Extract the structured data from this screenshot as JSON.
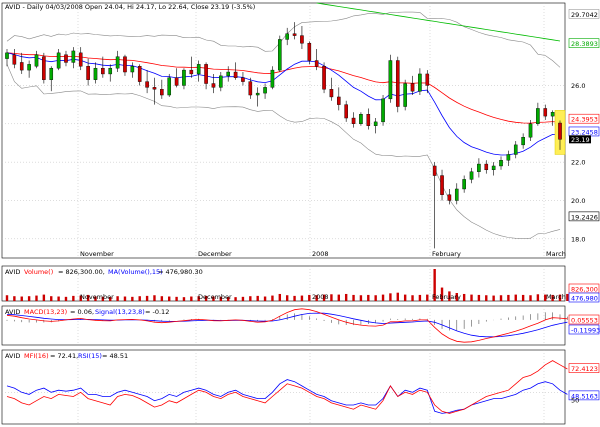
{
  "chart_data": [
    {
      "panel": "price",
      "type": "candlestick",
      "header": {
        "symbol": "AVID",
        "text": "AVID - Daily 04/03/2008 Open 24.04, Hi 24.17, Lo 22.64, Close 23.19 (-3.5%)"
      },
      "y_ticks": [
        "29.7042",
        "28.3893",
        "26.0",
        "24.3953",
        "22.0",
        "20.0",
        "18.0"
      ],
      "y_labels_boxed": [
        {
          "text": "24.3953",
          "color": "#ff0000"
        },
        {
          "text": "23.2458",
          "color": "#0000ff"
        },
        {
          "text": "23.19",
          "color": "#000000"
        },
        {
          "text": "19.2426",
          "color": "#000000"
        },
        {
          "text": "28.3893",
          "color": "#00aa00"
        }
      ],
      "ylim": [
        17.0,
        30.3
      ],
      "x_labels": [
        "November",
        "December",
        "2008",
        "February",
        "March"
      ],
      "grid": true,
      "series_colors": {
        "up": "#00aa00",
        "down": "#cc0000",
        "ma_short": "#0000ff",
        "ma_mid": "#ff0000",
        "ma_long": "#00bb00",
        "bands": "#888888",
        "highlight": "#ffee55"
      },
      "candles": [
        {
          "o": 27.4,
          "h": 27.9,
          "l": 27.0,
          "c": 27.7
        },
        {
          "o": 27.6,
          "h": 27.9,
          "l": 26.9,
          "c": 27.1
        },
        {
          "o": 27.2,
          "h": 27.7,
          "l": 26.6,
          "c": 26.8
        },
        {
          "o": 26.8,
          "h": 27.3,
          "l": 26.4,
          "c": 27.1
        },
        {
          "o": 27.0,
          "h": 27.8,
          "l": 26.9,
          "c": 27.6
        },
        {
          "o": 27.5,
          "h": 27.7,
          "l": 26.1,
          "c": 26.3
        },
        {
          "o": 26.3,
          "h": 27.0,
          "l": 25.7,
          "c": 26.9
        },
        {
          "o": 26.9,
          "h": 27.9,
          "l": 26.8,
          "c": 27.7
        },
        {
          "o": 27.6,
          "h": 27.8,
          "l": 27.0,
          "c": 27.2
        },
        {
          "o": 27.2,
          "h": 28.0,
          "l": 26.9,
          "c": 27.8
        },
        {
          "o": 27.7,
          "h": 28.0,
          "l": 26.8,
          "c": 27.0
        },
        {
          "o": 27.0,
          "h": 27.4,
          "l": 26.0,
          "c": 26.3
        },
        {
          "o": 26.3,
          "h": 27.2,
          "l": 26.1,
          "c": 26.9
        },
        {
          "o": 26.9,
          "h": 27.5,
          "l": 26.4,
          "c": 26.6
        },
        {
          "o": 26.6,
          "h": 27.1,
          "l": 26.2,
          "c": 26.9
        },
        {
          "o": 26.9,
          "h": 27.8,
          "l": 26.7,
          "c": 27.5
        },
        {
          "o": 27.5,
          "h": 27.6,
          "l": 26.5,
          "c": 26.7
        },
        {
          "o": 26.7,
          "h": 27.2,
          "l": 26.4,
          "c": 27.0
        },
        {
          "o": 27.0,
          "h": 27.1,
          "l": 26.0,
          "c": 26.2
        },
        {
          "o": 26.2,
          "h": 26.8,
          "l": 25.6,
          "c": 25.9
        },
        {
          "o": 25.9,
          "h": 26.4,
          "l": 25.0,
          "c": 25.8
        },
        {
          "o": 25.8,
          "h": 26.3,
          "l": 25.3,
          "c": 25.5
        },
        {
          "o": 25.5,
          "h": 26.6,
          "l": 25.4,
          "c": 26.4
        },
        {
          "o": 26.4,
          "h": 26.9,
          "l": 25.9,
          "c": 26.0
        },
        {
          "o": 26.0,
          "h": 26.9,
          "l": 25.8,
          "c": 26.8
        },
        {
          "o": 26.8,
          "h": 27.5,
          "l": 26.4,
          "c": 26.6
        },
        {
          "o": 26.6,
          "h": 27.3,
          "l": 26.2,
          "c": 27.1
        },
        {
          "o": 27.1,
          "h": 27.2,
          "l": 25.8,
          "c": 26.1
        },
        {
          "o": 26.1,
          "h": 26.6,
          "l": 25.6,
          "c": 25.9
        },
        {
          "o": 25.9,
          "h": 26.7,
          "l": 25.7,
          "c": 26.5
        },
        {
          "o": 26.5,
          "h": 27.0,
          "l": 26.2,
          "c": 26.7
        },
        {
          "o": 26.7,
          "h": 27.2,
          "l": 26.3,
          "c": 26.4
        },
        {
          "o": 26.4,
          "h": 26.7,
          "l": 26.0,
          "c": 26.2
        },
        {
          "o": 26.2,
          "h": 26.4,
          "l": 25.3,
          "c": 25.5
        },
        {
          "o": 25.5,
          "h": 25.9,
          "l": 24.9,
          "c": 25.6
        },
        {
          "o": 25.6,
          "h": 26.1,
          "l": 25.3,
          "c": 25.9
        },
        {
          "o": 25.9,
          "h": 27.0,
          "l": 25.8,
          "c": 26.8
        },
        {
          "o": 26.8,
          "h": 28.6,
          "l": 26.7,
          "c": 28.4
        },
        {
          "o": 28.4,
          "h": 29.0,
          "l": 28.1,
          "c": 28.7
        },
        {
          "o": 28.7,
          "h": 29.3,
          "l": 28.4,
          "c": 28.6
        },
        {
          "o": 28.6,
          "h": 29.1,
          "l": 27.9,
          "c": 28.2
        },
        {
          "o": 28.2,
          "h": 28.3,
          "l": 27.1,
          "c": 27.3
        },
        {
          "o": 27.3,
          "h": 27.9,
          "l": 26.8,
          "c": 27.0
        },
        {
          "o": 27.0,
          "h": 27.2,
          "l": 25.6,
          "c": 25.8
        },
        {
          "o": 25.8,
          "h": 26.4,
          "l": 25.2,
          "c": 25.4
        },
        {
          "o": 25.4,
          "h": 25.9,
          "l": 24.7,
          "c": 25.0
        },
        {
          "o": 25.0,
          "h": 25.2,
          "l": 24.1,
          "c": 24.3
        },
        {
          "o": 24.3,
          "h": 24.6,
          "l": 23.8,
          "c": 24.0
        },
        {
          "o": 24.0,
          "h": 24.6,
          "l": 23.9,
          "c": 24.5
        },
        {
          "o": 24.5,
          "h": 24.8,
          "l": 23.7,
          "c": 23.9
        },
        {
          "o": 23.9,
          "h": 24.3,
          "l": 23.5,
          "c": 24.1
        },
        {
          "o": 24.1,
          "h": 25.5,
          "l": 23.9,
          "c": 25.3
        },
        {
          "o": 25.3,
          "h": 27.6,
          "l": 25.1,
          "c": 27.3
        },
        {
          "o": 27.3,
          "h": 27.5,
          "l": 24.6,
          "c": 24.9
        },
        {
          "o": 24.9,
          "h": 26.3,
          "l": 24.7,
          "c": 26.1
        },
        {
          "o": 26.1,
          "h": 26.5,
          "l": 25.5,
          "c": 25.7
        },
        {
          "o": 25.7,
          "h": 26.9,
          "l": 25.5,
          "c": 26.6
        },
        {
          "o": 26.6,
          "h": 26.8,
          "l": 25.6,
          "c": 26.0
        },
        {
          "o": 21.8,
          "h": 22.0,
          "l": 17.5,
          "c": 21.3
        },
        {
          "o": 21.3,
          "h": 21.6,
          "l": 20.0,
          "c": 20.3
        },
        {
          "o": 20.3,
          "h": 20.6,
          "l": 19.8,
          "c": 20.0
        },
        {
          "o": 20.0,
          "h": 20.9,
          "l": 19.8,
          "c": 20.6
        },
        {
          "o": 20.6,
          "h": 21.3,
          "l": 20.4,
          "c": 21.1
        },
        {
          "o": 21.1,
          "h": 21.7,
          "l": 20.9,
          "c": 21.5
        },
        {
          "o": 21.5,
          "h": 22.2,
          "l": 21.2,
          "c": 21.9
        },
        {
          "o": 21.9,
          "h": 22.1,
          "l": 21.4,
          "c": 21.6
        },
        {
          "o": 21.6,
          "h": 22.0,
          "l": 21.3,
          "c": 21.8
        },
        {
          "o": 21.8,
          "h": 22.3,
          "l": 21.6,
          "c": 22.1
        },
        {
          "o": 22.1,
          "h": 22.6,
          "l": 21.8,
          "c": 22.4
        },
        {
          "o": 22.4,
          "h": 23.1,
          "l": 22.2,
          "c": 22.9
        },
        {
          "o": 22.9,
          "h": 23.5,
          "l": 22.7,
          "c": 23.3
        },
        {
          "o": 23.3,
          "h": 24.2,
          "l": 23.1,
          "c": 24.0
        },
        {
          "o": 24.0,
          "h": 25.1,
          "l": 23.9,
          "c": 24.8
        },
        {
          "o": 24.8,
          "h": 25.0,
          "l": 24.2,
          "c": 24.4
        },
        {
          "o": 24.4,
          "h": 24.7,
          "l": 23.9,
          "c": 24.6
        },
        {
          "o": 24.04,
          "h": 24.17,
          "l": 22.64,
          "c": 23.19
        }
      ]
    },
    {
      "panel": "volume",
      "type": "bar",
      "header": {
        "symbol": "AVID",
        "label": "Volume()",
        "value": "= 826,300.00,",
        "ma_label": "MA(Volume(),15)",
        "ma_value": "= 476,980.30"
      },
      "y_labels_boxed": [
        {
          "text": "826,300",
          "color": "#ff0000"
        },
        {
          "text": "476,980",
          "color": "#0000ff"
        }
      ],
      "x_labels": [
        "November",
        "December",
        "2008",
        "February",
        "March"
      ],
      "relative_volume": [
        0.18,
        0.15,
        0.14,
        0.15,
        0.17,
        0.2,
        0.15,
        0.14,
        0.13,
        0.16,
        0.17,
        0.19,
        0.14,
        0.13,
        0.12,
        0.15,
        0.14,
        0.13,
        0.15,
        0.16,
        0.18,
        0.15,
        0.14,
        0.13,
        0.12,
        0.14,
        0.15,
        0.16,
        0.14,
        0.13,
        0.12,
        0.12,
        0.13,
        0.15,
        0.16,
        0.14,
        0.17,
        0.22,
        0.18,
        0.16,
        0.17,
        0.19,
        0.18,
        0.2,
        0.21,
        0.2,
        0.22,
        0.19,
        0.18,
        0.19,
        0.18,
        0.2,
        0.24,
        0.26,
        0.2,
        0.18,
        0.19,
        0.2,
        1.0,
        0.42,
        0.3,
        0.25,
        0.22,
        0.2,
        0.19,
        0.18,
        0.17,
        0.18,
        0.19,
        0.2,
        0.19,
        0.18,
        0.21,
        0.2,
        0.19,
        0.2,
        0.22
      ]
    },
    {
      "panel": "macd",
      "type": "line",
      "header": {
        "symbol": "AVID",
        "label": "MACD(13,23)",
        "value": "= 0.06,",
        "signal_label": "Signal(13,23,8)",
        "signal_value": "= -0.12"
      },
      "y_labels_boxed": [
        {
          "text": "0.05553",
          "color": "#ff0000"
        },
        {
          "text": "-0.11993",
          "color": "#0000ff"
        }
      ],
      "x_labels": [
        "November",
        "December",
        "2008",
        "February",
        "March"
      ],
      "series": [
        {
          "name": "MACD(13,23)",
          "color": "#ff0000",
          "values": [
            0.25,
            0.2,
            0.12,
            0.05,
            0.0,
            -0.05,
            -0.08,
            -0.05,
            0.0,
            0.05,
            0.08,
            0.02,
            -0.02,
            -0.04,
            -0.05,
            0.0,
            0.02,
            0.03,
            0.0,
            -0.05,
            -0.12,
            -0.15,
            -0.12,
            -0.08,
            -0.04,
            0.0,
            0.03,
            0.0,
            -0.04,
            -0.05,
            -0.02,
            0.0,
            -0.02,
            -0.08,
            -0.12,
            -0.1,
            -0.02,
            0.2,
            0.4,
            0.55,
            0.6,
            0.55,
            0.45,
            0.3,
            0.15,
            0.0,
            -0.12,
            -0.22,
            -0.28,
            -0.32,
            -0.33,
            -0.28,
            -0.1,
            -0.1,
            -0.05,
            -0.05,
            0.0,
            0.0,
            -0.4,
            -0.75,
            -1.0,
            -1.15,
            -1.2,
            -1.18,
            -1.1,
            -1.0,
            -0.92,
            -0.82,
            -0.72,
            -0.6,
            -0.48,
            -0.32,
            -0.18,
            0.0,
            0.12,
            0.1,
            0.06
          ]
        },
        {
          "name": "Signal(13,23,8)",
          "color": "#0000ff",
          "values": [
            0.3,
            0.28,
            0.24,
            0.19,
            0.14,
            0.09,
            0.05,
            0.02,
            0.01,
            0.02,
            0.03,
            0.03,
            0.02,
            0.0,
            -0.01,
            -0.01,
            0.0,
            0.0,
            0.0,
            -0.01,
            -0.04,
            -0.07,
            -0.08,
            -0.08,
            -0.07,
            -0.05,
            -0.03,
            -0.02,
            -0.02,
            -0.03,
            -0.03,
            -0.02,
            -0.02,
            -0.04,
            -0.06,
            -0.07,
            -0.06,
            0.0,
            0.1,
            0.2,
            0.29,
            0.35,
            0.37,
            0.36,
            0.31,
            0.24,
            0.15,
            0.06,
            -0.02,
            -0.1,
            -0.16,
            -0.19,
            -0.17,
            -0.15,
            -0.13,
            -0.11,
            -0.08,
            -0.06,
            -0.13,
            -0.27,
            -0.43,
            -0.59,
            -0.72,
            -0.82,
            -0.88,
            -0.91,
            -0.91,
            -0.89,
            -0.85,
            -0.79,
            -0.72,
            -0.63,
            -0.53,
            -0.41,
            -0.29,
            -0.2,
            -0.12
          ]
        }
      ],
      "histogram": [
        -0.05,
        -0.08,
        -0.12,
        -0.14,
        -0.14,
        -0.14,
        -0.13,
        -0.07,
        -0.01,
        0.03,
        0.05,
        -0.01,
        -0.04,
        -0.04,
        -0.04,
        0.01,
        0.02,
        0.03,
        0.0,
        -0.04,
        -0.08,
        -0.08,
        -0.04,
        0.0,
        0.03,
        0.05,
        0.06,
        0.02,
        -0.02,
        -0.02,
        0.01,
        0.02,
        0.0,
        -0.04,
        -0.06,
        -0.03,
        0.04,
        0.2,
        0.3,
        0.35,
        0.31,
        0.2,
        0.08,
        -0.06,
        -0.16,
        -0.24,
        -0.27,
        -0.28,
        -0.26,
        -0.22,
        -0.17,
        -0.09,
        0.07,
        0.05,
        0.08,
        0.06,
        0.08,
        0.06,
        -0.27,
        -0.48,
        -0.57,
        -0.56,
        -0.48,
        -0.36,
        -0.22,
        -0.09,
        -0.01,
        0.07,
        0.13,
        0.19,
        0.24,
        0.31,
        0.35,
        0.41,
        0.41,
        0.3,
        0.18
      ]
    },
    {
      "panel": "mfi_rsi",
      "type": "line",
      "header": {
        "symbol": "AVID",
        "label": "MFI(16)",
        "value": "= 72.41,",
        "rsi_label": "RSI(15)",
        "rsi_value": "= 48.51"
      },
      "y_labels_boxed": [
        {
          "text": "72.4123",
          "color": "#ff0000"
        },
        {
          "text": "48.5163",
          "color": "#0000ff"
        },
        {
          "text": "50",
          "color": "#000000"
        }
      ],
      "x_labels": [
        "November",
        "December",
        "2008",
        "February",
        "March"
      ],
      "series": [
        {
          "name": "MFI(16)",
          "color": "#ff0000",
          "values": [
            46,
            44,
            40,
            38,
            42,
            46,
            44,
            48,
            47,
            46,
            50,
            44,
            42,
            40,
            38,
            46,
            48,
            47,
            44,
            40,
            36,
            38,
            42,
            40,
            44,
            48,
            52,
            50,
            46,
            44,
            48,
            50,
            46,
            44,
            42,
            40,
            46,
            52,
            58,
            56,
            54,
            50,
            46,
            44,
            40,
            38,
            36,
            34,
            38,
            36,
            34,
            42,
            56,
            46,
            50,
            48,
            52,
            50,
            38,
            32,
            30,
            32,
            34,
            38,
            42,
            46,
            48,
            50,
            52,
            58,
            64,
            66,
            70,
            76,
            80,
            76,
            72
          ]
        },
        {
          "name": "RSI(15)",
          "color": "#0000ff",
          "values": [
            56,
            54,
            50,
            48,
            52,
            54,
            50,
            52,
            51,
            52,
            54,
            48,
            48,
            46,
            46,
            50,
            52,
            50,
            48,
            46,
            42,
            44,
            48,
            46,
            50,
            52,
            54,
            52,
            48,
            46,
            50,
            52,
            48,
            46,
            44,
            44,
            50,
            58,
            62,
            60,
            56,
            52,
            48,
            46,
            42,
            40,
            38,
            38,
            40,
            38,
            38,
            44,
            56,
            46,
            52,
            50,
            54,
            52,
            32,
            30,
            31,
            33,
            34,
            38,
            40,
            42,
            44,
            44,
            46,
            48,
            52,
            54,
            58,
            60,
            58,
            52,
            48
          ]
        }
      ]
    }
  ]
}
